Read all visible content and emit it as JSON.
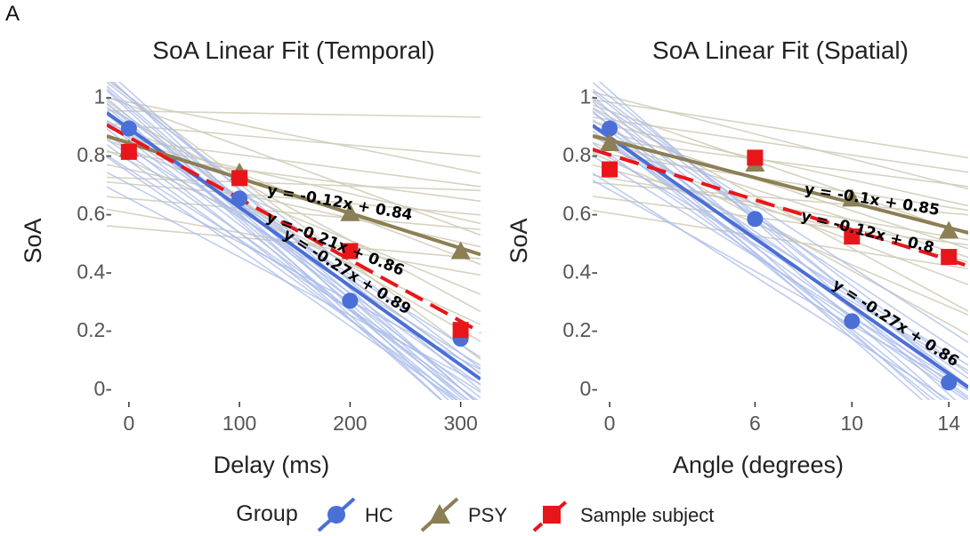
{
  "panel_label": "A",
  "colors": {
    "hc": "#4a6fd6",
    "psy": "#8c7f55",
    "sample": "#e8161b",
    "hc_light": "#a9bbea",
    "psy_light": "#cfcbb6",
    "tickmark": "#333333"
  },
  "legend": {
    "title": "Group",
    "items": [
      {
        "label": "HC",
        "series": "hc",
        "icon": "circle-marker-with-line"
      },
      {
        "label": "PSY",
        "series": "psy",
        "icon": "triangle-marker-with-line"
      },
      {
        "label": "Sample subject",
        "series": "sample",
        "icon": "square-marker-with-dashed-line"
      }
    ]
  },
  "chart_data": [
    {
      "type": "line",
      "title": "SoA Linear Fit (Temporal)",
      "xlabel": "Delay (ms)",
      "ylabel": "SoA",
      "x_ticks": [
        0,
        100,
        200,
        300
      ],
      "y_ticks": [
        0,
        0.2,
        0.4,
        0.6,
        0.8,
        1
      ],
      "y_tick_labels": [
        "0-",
        "0.2-",
        "0.4-",
        "0.6-",
        "0.8-",
        "1-"
      ],
      "xlim": [
        -20,
        318
      ],
      "ylim": [
        -0.04,
        1.05
      ],
      "grid": false,
      "series": [
        {
          "key": "hc",
          "name": "HC",
          "x": [
            0,
            100,
            200,
            300
          ],
          "y": [
            0.89,
            0.65,
            0.3,
            0.17
          ],
          "fit": {
            "slope": -0.27,
            "intercept": 0.89,
            "unit_per_x": 100
          },
          "marker": "circle"
        },
        {
          "key": "psy",
          "name": "PSY",
          "x": [
            0,
            100,
            200,
            300
          ],
          "y": [
            0.82,
            0.74,
            0.6,
            0.47
          ],
          "fit": {
            "slope": -0.12,
            "intercept": 0.84,
            "unit_per_x": 100
          },
          "marker": "triangle"
        },
        {
          "key": "sample",
          "name": "Sample subject",
          "x": [
            0,
            100,
            200,
            300
          ],
          "y": [
            0.81,
            0.72,
            0.47,
            0.2
          ],
          "fit": {
            "slope": -0.21,
            "intercept": 0.86,
            "unit_per_x": 100
          },
          "marker": "square"
        }
      ],
      "annotations": [
        {
          "text": "y = -0.12x + 0.84",
          "x": 190,
          "y": 0.62,
          "angle": 10
        },
        {
          "text": "y = -0.21x + 0.86",
          "x": 185,
          "y": 0.48,
          "angle": 22
        },
        {
          "text": "y = -0.27x + 0.89",
          "x": 195,
          "y": 0.385,
          "angle": 32
        }
      ],
      "hc_individual": [
        [
          0.95,
          -0.1
        ],
        [
          0.9,
          -0.05
        ],
        [
          1.0,
          0.05
        ],
        [
          0.85,
          -0.02
        ],
        [
          0.92,
          0.1
        ],
        [
          0.8,
          0.0
        ],
        [
          1.0,
          -0.08
        ],
        [
          0.88,
          0.02
        ],
        [
          0.75,
          0.03
        ],
        [
          0.97,
          0.0
        ],
        [
          0.83,
          -0.06
        ],
        [
          0.7,
          0.1
        ],
        [
          0.93,
          -0.03
        ],
        [
          0.86,
          0.06
        ],
        [
          0.78,
          -0.04
        ],
        [
          0.99,
          0.12
        ],
        [
          0.91,
          -0.1
        ],
        [
          0.65,
          0.05
        ],
        [
          0.82,
          0.12
        ],
        [
          0.96,
          -0.02
        ],
        [
          0.89,
          0.08
        ],
        [
          0.74,
          -0.05
        ],
        [
          0.87,
          0.15
        ],
        [
          1.02,
          0.0
        ]
      ],
      "psy_individual": [
        [
          0.95,
          0.93
        ],
        [
          0.9,
          0.8
        ],
        [
          0.85,
          0.7
        ],
        [
          0.8,
          0.65
        ],
        [
          0.97,
          0.55
        ],
        [
          0.88,
          0.45
        ],
        [
          0.75,
          0.5
        ],
        [
          0.82,
          0.35
        ],
        [
          0.7,
          0.6
        ],
        [
          0.92,
          0.3
        ],
        [
          0.78,
          0.25
        ],
        [
          0.86,
          0.2
        ],
        [
          0.65,
          0.55
        ],
        [
          0.6,
          0.4
        ],
        [
          1.0,
          0.15
        ],
        [
          0.55,
          0.45
        ],
        [
          0.98,
          0.75
        ],
        [
          0.72,
          0.68
        ],
        [
          0.84,
          0.58
        ],
        [
          0.93,
          0.1
        ]
      ]
    },
    {
      "type": "line",
      "title": "SoA Linear Fit (Spatial)",
      "xlabel": "Angle (degrees)",
      "ylabel": "SoA",
      "x_ticks": [
        0,
        6,
        10,
        14
      ],
      "y_ticks": [
        0,
        0.2,
        0.4,
        0.6,
        0.8,
        1
      ],
      "y_tick_labels": [
        "0-",
        "0.2-",
        "0.4-",
        "0.6-",
        "0.8-",
        "1-"
      ],
      "xlim": [
        -0.7,
        14.8
      ],
      "ylim": [
        -0.04,
        1.05
      ],
      "grid": false,
      "series": [
        {
          "key": "hc",
          "name": "HC",
          "x": [
            0,
            6,
            10,
            14
          ],
          "y": [
            0.89,
            0.58,
            0.23,
            0.02
          ],
          "fit": {
            "slope": -0.27,
            "intercept": 0.86,
            "unit_per_x": 4.667
          },
          "marker": "circle"
        },
        {
          "key": "psy",
          "name": "PSY",
          "x": [
            0,
            6,
            10,
            14
          ],
          "y": [
            0.84,
            0.77,
            0.65,
            0.54
          ],
          "fit": {
            "slope": -0.1,
            "intercept": 0.85,
            "unit_per_x": 4.667
          },
          "marker": "triangle"
        },
        {
          "key": "sample",
          "name": "Sample subject",
          "x": [
            0,
            6,
            10,
            14
          ],
          "y": [
            0.75,
            0.79,
            0.52,
            0.45
          ],
          "fit": {
            "slope": -0.12,
            "intercept": 0.8,
            "unit_per_x": 4.667
          },
          "marker": "square"
        }
      ],
      "annotations": [
        {
          "text": "y = -0.1x + 0.85",
          "x": 10.8,
          "y": 0.63,
          "angle": 9
        },
        {
          "text": "y = -0.12x + 0.8",
          "x": 10.6,
          "y": 0.52,
          "angle": 14
        },
        {
          "text": "y = -0.27x + 0.86",
          "x": 11.7,
          "y": 0.21,
          "angle": 33
        }
      ],
      "hc_individual": [
        [
          0.95,
          -0.05
        ],
        [
          1.0,
          0.05
        ],
        [
          0.9,
          0.02
        ],
        [
          0.85,
          -0.08
        ],
        [
          0.98,
          0.1
        ],
        [
          0.8,
          0.0
        ],
        [
          0.93,
          -0.1
        ],
        [
          0.88,
          0.08
        ],
        [
          0.76,
          0.04
        ],
        [
          1.02,
          -0.02
        ],
        [
          0.83,
          0.12
        ],
        [
          0.7,
          -0.04
        ],
        [
          0.92,
          0.15
        ],
        [
          0.86,
          -0.06
        ],
        [
          0.97,
          0.06
        ],
        [
          0.79,
          0.1
        ],
        [
          0.9,
          -0.12
        ],
        [
          0.68,
          0.03
        ],
        [
          0.95,
          0.2
        ],
        [
          0.84,
          0.01
        ]
      ],
      "psy_individual": [
        [
          0.98,
          0.8
        ],
        [
          0.92,
          0.75
        ],
        [
          0.85,
          0.7
        ],
        [
          0.8,
          0.62
        ],
        [
          0.95,
          0.55
        ],
        [
          0.88,
          0.5
        ],
        [
          0.75,
          0.45
        ],
        [
          0.82,
          0.38
        ],
        [
          0.7,
          0.6
        ],
        [
          0.93,
          0.3
        ],
        [
          0.78,
          0.28
        ],
        [
          0.86,
          0.22
        ],
        [
          0.65,
          0.5
        ],
        [
          0.6,
          0.42
        ],
        [
          1.0,
          0.7
        ],
        [
          0.9,
          0.64
        ],
        [
          0.72,
          0.52
        ],
        [
          0.84,
          0.47
        ]
      ]
    }
  ]
}
